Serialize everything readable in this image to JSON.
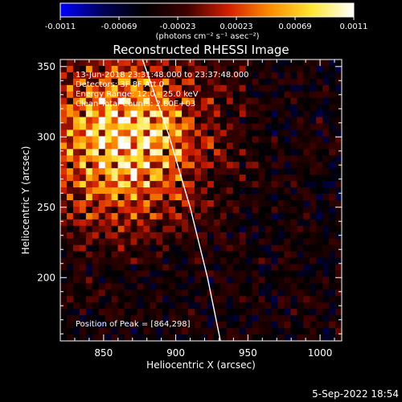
{
  "colorbar": {
    "ticks": [
      "-0.0011",
      "-0.00069",
      "-0.00023",
      "0.00023",
      "0.00069",
      "0.0011"
    ],
    "unit_label": "(photons cm⁻² s⁻¹ asec⁻²)",
    "colors": [
      "#0000ff",
      "#00005a",
      "#000000",
      "#3c0000",
      "#d21e00",
      "#ff8c00",
      "#ffe632",
      "#ffffff"
    ]
  },
  "chart_data": {
    "type": "heatmap",
    "title": "Reconstructed RHESSI Image",
    "xlabel": "Heliocentric X (arcsec)",
    "ylabel": "Heliocentric Y (arcsec)",
    "xlim": [
      820,
      1015
    ],
    "ylim": [
      155,
      355
    ],
    "x_ticks": [
      850,
      900,
      950,
      1000
    ],
    "y_ticks": [
      200,
      250,
      300,
      350
    ],
    "annotations": [
      "13-Jun-2018 23:31:48.000 to 23:37:48.000",
      "Detectors: 3F 8F  Att 0",
      "Energy Range: 12.0 - 25.0 keV",
      "Clean     Total Counts: 2.80E+03"
    ],
    "peak_label": "Position of Peak = [864,298]",
    "peak": [
      864,
      298
    ],
    "limb": [
      [
        877,
        355
      ],
      [
        895,
        302
      ],
      [
        910,
        250
      ],
      [
        922,
        200
      ],
      [
        931,
        155
      ]
    ]
  },
  "footer": {
    "date": "5-Sep-2022 18:54"
  }
}
